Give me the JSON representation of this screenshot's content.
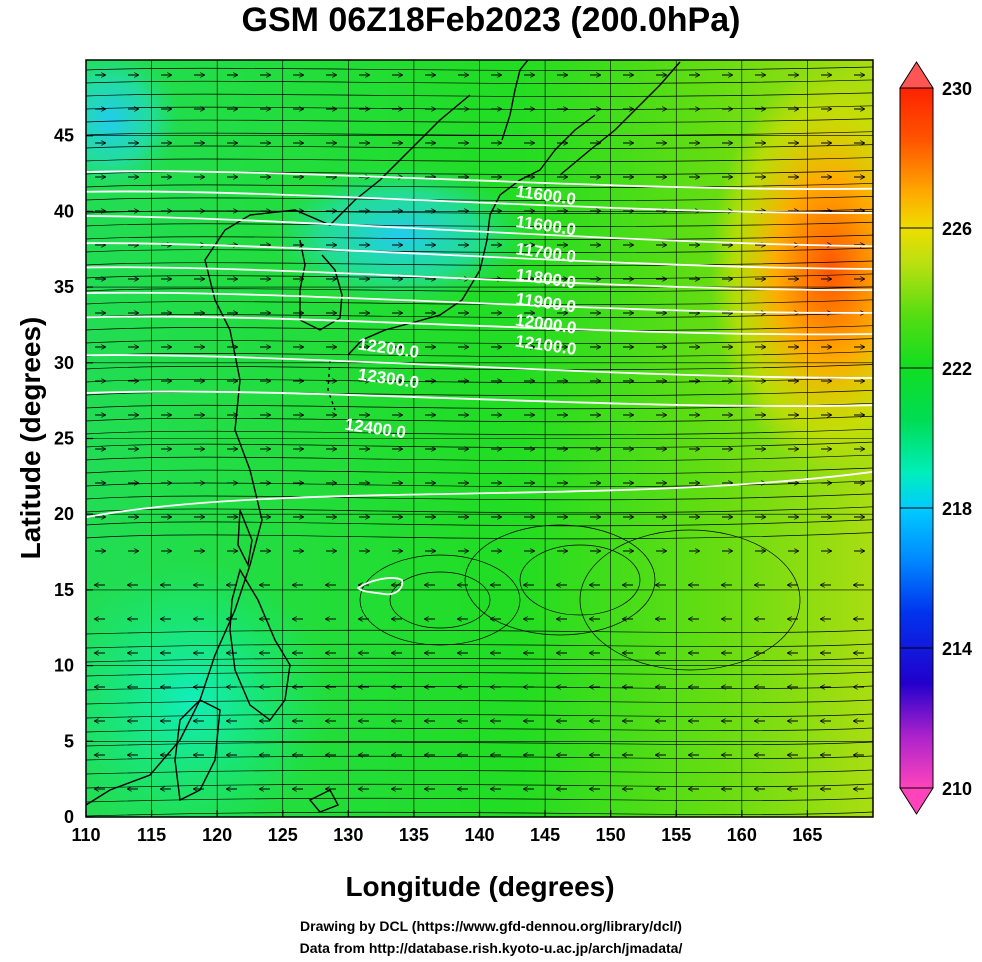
{
  "title": "GSM 06Z18Feb2023 (200.0hPa)",
  "map": {
    "lon_range": [
      110,
      170
    ],
    "lat_range": [
      0,
      50
    ],
    "x_ticks": [
      "110",
      "115",
      "120",
      "125",
      "130",
      "135",
      "140",
      "145",
      "150",
      "155",
      "160",
      "165"
    ],
    "y_ticks": [
      "0",
      "5",
      "10",
      "15",
      "20",
      "25",
      "30",
      "35",
      "40",
      "45"
    ],
    "xlabel": "Longitude (degrees)",
    "ylabel": "Latitude  (degrees)",
    "grid": true,
    "shaded_field": "temperature",
    "vector_field": "streamlines with arrows",
    "contour_color": "#ffffff",
    "contours": [
      {
        "label": "11600.0",
        "lat_west": 42.6,
        "lat_east": 41.5,
        "label_lon": 145,
        "label_lat": 40.7
      },
      {
        "label": "11600.0",
        "lat_west": 41.3,
        "lat_east": 39.9,
        "label_lon": 145,
        "label_lat": 38.7
      },
      {
        "label": "11700.0",
        "lat_west": 39.7,
        "lat_east": 37.7,
        "label_lon": 145,
        "label_lat": 36.9
      },
      {
        "label": "11800.0",
        "lat_west": 37.9,
        "lat_east": 36.2,
        "label_lon": 145,
        "label_lat": 35.2
      },
      {
        "label": "11900.0",
        "lat_west": 36.3,
        "lat_east": 34.8,
        "label_lon": 145,
        "label_lat": 33.6
      },
      {
        "label": "12000.0",
        "lat_west": 34.6,
        "lat_east": 33.3,
        "label_lon": 145,
        "label_lat": 32.2
      },
      {
        "label": "12100.0",
        "lat_west": 33.0,
        "lat_east": 31.9,
        "label_lon": 145,
        "label_lat": 30.8
      },
      {
        "label": "12200.0",
        "lat_west": 30.5,
        "lat_east": 29.0,
        "label_lon": 133,
        "label_lat": 30.6
      },
      {
        "label": "12300.0",
        "lat_west": 28.0,
        "lat_east": 27.2,
        "label_lon": 133,
        "label_lat": 28.6
      },
      {
        "label": "12400.0",
        "lat_west": 19.8,
        "lat_east": 22.8,
        "label_lon": 132,
        "label_lat": 25.3
      }
    ]
  },
  "colorbar": {
    "min": 210,
    "max": 230,
    "tick_labels": [
      "230",
      "226",
      "222",
      "218",
      "214",
      "210"
    ],
    "stops": [
      {
        "value": 210,
        "color": "#ff44bb"
      },
      {
        "value": 211.5,
        "color": "#aa22cc"
      },
      {
        "value": 213,
        "color": "#2200cc"
      },
      {
        "value": 215,
        "color": "#0033ee"
      },
      {
        "value": 216.5,
        "color": "#0088ff"
      },
      {
        "value": 218,
        "color": "#00ccff"
      },
      {
        "value": 219,
        "color": "#00eebb"
      },
      {
        "value": 220.5,
        "color": "#00dd55"
      },
      {
        "value": 222,
        "color": "#11dd22"
      },
      {
        "value": 223.5,
        "color": "#55dd11"
      },
      {
        "value": 225,
        "color": "#bbe011"
      },
      {
        "value": 226,
        "color": "#eedd00"
      },
      {
        "value": 227,
        "color": "#ffaa00"
      },
      {
        "value": 228.5,
        "color": "#ff5500"
      },
      {
        "value": 230,
        "color": "#ff2200"
      }
    ]
  },
  "credits": {
    "line1": "Drawing by DCL (https://www.gfd-dennou.org/library/dcl/)",
    "line2": "Data from http://database.rish.kyoto-u.ac.jp/arch/jmadata/"
  }
}
